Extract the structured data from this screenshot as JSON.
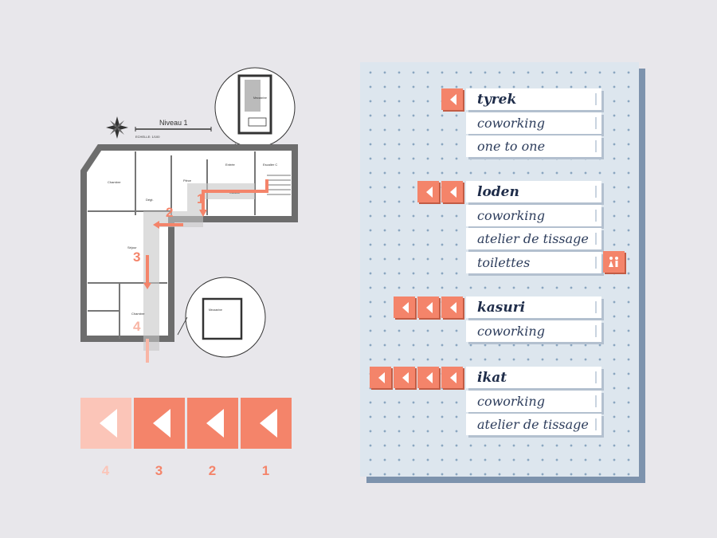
{
  "plan": {
    "level_title": "Niveau 1",
    "scale_text": "ECHELLE: 1/100",
    "rooms": [
      "Chambre",
      "Pièce",
      "Entrée",
      "Escalier C",
      "Cuisine",
      "Séjour",
      "Chambre",
      "Dégt.",
      "Mezzanine",
      "Mezzanine"
    ],
    "route_numbers": [
      "1",
      "2",
      "3",
      "4"
    ]
  },
  "legend": [
    {
      "arrows": 4,
      "label": "4",
      "color": "#fbc5b8",
      "text_color": "#fbc5b8"
    },
    {
      "arrows": 3,
      "label": "3",
      "color": "#f4846a",
      "text_color": "#f4846a"
    },
    {
      "arrows": 2,
      "label": "2",
      "color": "#f4846a",
      "text_color": "#f4846a"
    },
    {
      "arrows": 1,
      "label": "1",
      "color": "#f4846a",
      "text_color": "#f4846a"
    }
  ],
  "signs": [
    {
      "arrows": 1,
      "title": "tyrek",
      "items": [
        "coworking",
        "one to one"
      ]
    },
    {
      "arrows": 2,
      "title": "loden",
      "items": [
        "coworking",
        "atelier de tissage",
        "toilettes"
      ]
    },
    {
      "arrows": 3,
      "title": "kasuri",
      "items": [
        "coworking"
      ]
    },
    {
      "arrows": 4,
      "title": "ikat",
      "items": [
        "coworking",
        "atelier de tissage"
      ]
    }
  ],
  "colors": {
    "accent": "#f4846a",
    "accent_light": "#fbc5b8",
    "board": "#dde6ee",
    "text": "#1f2d4a"
  },
  "icons": {
    "direction": "left-arrow-icon",
    "restroom": "restroom-icon"
  }
}
